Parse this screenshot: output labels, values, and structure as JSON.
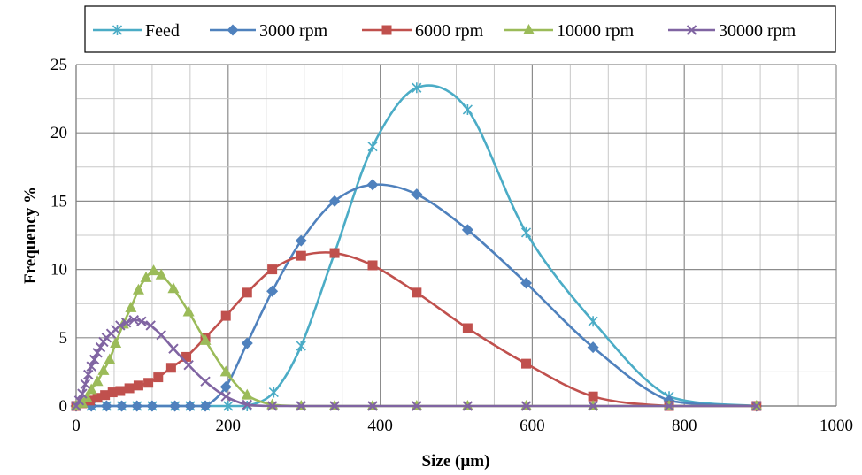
{
  "chart_data": {
    "type": "line",
    "xlabel": "Size (µm)",
    "ylabel": "Frequency %",
    "xlim": [
      0,
      1000
    ],
    "ylim": [
      0,
      25
    ],
    "xticks": [
      0,
      200,
      400,
      600,
      800,
      1000
    ],
    "yticks": [
      0,
      5,
      10,
      15,
      20,
      25
    ],
    "x_minor_step": 50,
    "y_minor_step": 2.5,
    "grid": true,
    "legend_position": "top",
    "series": [
      {
        "name": "Feed",
        "color": "#4bacc6",
        "marker": "asterisk",
        "points": [
          [
            0,
            0
          ],
          [
            20,
            0
          ],
          [
            40,
            0
          ],
          [
            60,
            0
          ],
          [
            80,
            0
          ],
          [
            100,
            0
          ],
          [
            130,
            0
          ],
          [
            150,
            0
          ],
          [
            170,
            0
          ],
          [
            200,
            0
          ],
          [
            225,
            0
          ],
          [
            260,
            1.0
          ],
          [
            296,
            4.4
          ],
          [
            340,
            11.2
          ],
          [
            390,
            19.0
          ],
          [
            448,
            23.3
          ],
          [
            515,
            21.7
          ],
          [
            592,
            12.7
          ],
          [
            680,
            6.2
          ],
          [
            780,
            0.7
          ],
          [
            895,
            0
          ]
        ]
      },
      {
        "name": "3000 rpm",
        "color": "#4f81bd",
        "marker": "diamond",
        "points": [
          [
            0,
            0
          ],
          [
            20,
            0
          ],
          [
            40,
            0
          ],
          [
            60,
            0
          ],
          [
            80,
            0
          ],
          [
            100,
            0
          ],
          [
            130,
            0
          ],
          [
            150,
            0
          ],
          [
            170,
            0
          ],
          [
            197,
            1.4
          ],
          [
            225,
            4.6
          ],
          [
            258,
            8.4
          ],
          [
            296,
            12.1
          ],
          [
            340,
            15.0
          ],
          [
            390,
            16.2
          ],
          [
            448,
            15.5
          ],
          [
            515,
            12.9
          ],
          [
            592,
            9.0
          ],
          [
            680,
            4.3
          ],
          [
            780,
            0.4
          ],
          [
            895,
            0
          ]
        ]
      },
      {
        "name": "6000 rpm",
        "color": "#c0504d",
        "marker": "square",
        "points": [
          [
            0,
            0
          ],
          [
            8,
            0.2
          ],
          [
            18,
            0.4
          ],
          [
            28,
            0.6
          ],
          [
            38,
            0.8
          ],
          [
            48,
            1.0
          ],
          [
            58,
            1.1
          ],
          [
            70,
            1.3
          ],
          [
            82,
            1.5
          ],
          [
            95,
            1.7
          ],
          [
            108,
            2.1
          ],
          [
            125,
            2.8
          ],
          [
            145,
            3.6
          ],
          [
            170,
            5.0
          ],
          [
            197,
            6.6
          ],
          [
            225,
            8.3
          ],
          [
            258,
            10.0
          ],
          [
            296,
            11.0
          ],
          [
            340,
            11.2
          ],
          [
            390,
            10.3
          ],
          [
            448,
            8.3
          ],
          [
            515,
            5.7
          ],
          [
            592,
            3.1
          ],
          [
            680,
            0.7
          ],
          [
            780,
            0
          ],
          [
            895,
            0
          ]
        ]
      },
      {
        "name": "10000 rpm",
        "color": "#9bbb59",
        "marker": "triangle",
        "points": [
          [
            0,
            0
          ],
          [
            8,
            0.2
          ],
          [
            14,
            0.6
          ],
          [
            20,
            1.2
          ],
          [
            28,
            1.8
          ],
          [
            36,
            2.6
          ],
          [
            44,
            3.4
          ],
          [
            52,
            4.6
          ],
          [
            62,
            6.0
          ],
          [
            72,
            7.2
          ],
          [
            82,
            8.5
          ],
          [
            92,
            9.4
          ],
          [
            102,
            9.9
          ],
          [
            112,
            9.6
          ],
          [
            128,
            8.6
          ],
          [
            148,
            6.9
          ],
          [
            170,
            4.8
          ],
          [
            197,
            2.5
          ],
          [
            225,
            0.8
          ],
          [
            258,
            0.1
          ],
          [
            296,
            0
          ],
          [
            340,
            0
          ],
          [
            390,
            0
          ],
          [
            448,
            0
          ],
          [
            515,
            0
          ],
          [
            592,
            0
          ],
          [
            680,
            0
          ],
          [
            780,
            0
          ],
          [
            895,
            0
          ]
        ]
      },
      {
        "name": "30000 rpm",
        "color": "#8064a2",
        "marker": "x",
        "points": [
          [
            0,
            0
          ],
          [
            4,
            0.4
          ],
          [
            8,
            0.9
          ],
          [
            12,
            1.6
          ],
          [
            16,
            2.3
          ],
          [
            20,
            2.9
          ],
          [
            24,
            3.4
          ],
          [
            28,
            3.9
          ],
          [
            32,
            4.3
          ],
          [
            36,
            4.7
          ],
          [
            40,
            5.0
          ],
          [
            46,
            5.3
          ],
          [
            52,
            5.6
          ],
          [
            58,
            5.9
          ],
          [
            66,
            6.1
          ],
          [
            76,
            6.3
          ],
          [
            86,
            6.2
          ],
          [
            98,
            5.9
          ],
          [
            112,
            5.2
          ],
          [
            128,
            4.2
          ],
          [
            148,
            3.0
          ],
          [
            170,
            1.8
          ],
          [
            197,
            0.7
          ],
          [
            225,
            0.1
          ],
          [
            258,
            0
          ],
          [
            296,
            0
          ],
          [
            340,
            0
          ],
          [
            390,
            0
          ],
          [
            448,
            0
          ],
          [
            515,
            0
          ],
          [
            592,
            0
          ],
          [
            680,
            0
          ],
          [
            780,
            0
          ],
          [
            895,
            0
          ]
        ]
      }
    ]
  }
}
